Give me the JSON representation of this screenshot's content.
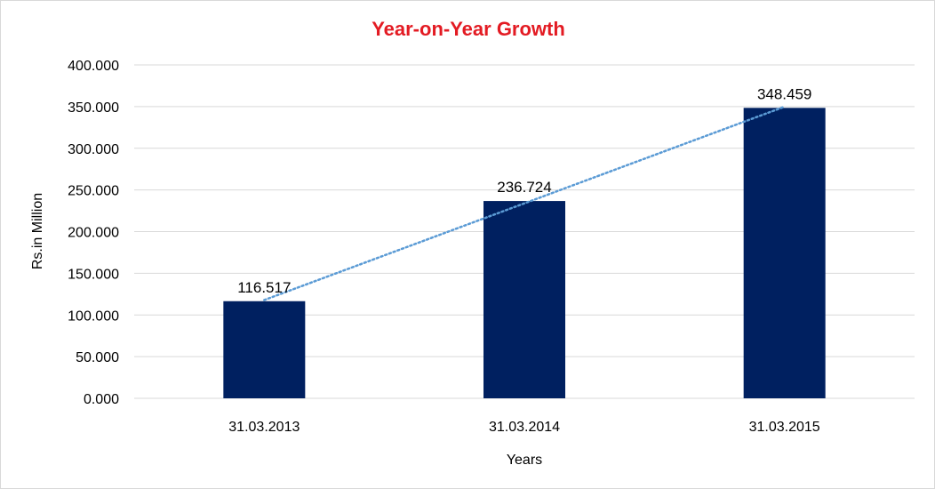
{
  "chart_data": {
    "type": "bar",
    "title": "Year-on-Year Growth",
    "xlabel": "Years",
    "ylabel": "Rs.in Million",
    "categories": [
      "31.03.2013",
      "31.03.2014",
      "31.03.2015"
    ],
    "values": [
      116.517,
      236.724,
      348.459
    ],
    "value_labels": [
      "116.517",
      "236.724",
      "348.459"
    ],
    "ylim": [
      0,
      400
    ],
    "yticks": [
      0,
      50,
      100,
      150,
      200,
      250,
      300,
      350,
      400
    ],
    "ytick_labels": [
      "0.000",
      "50.000",
      "100.000",
      "150.000",
      "200.000",
      "250.000",
      "300.000",
      "350.000",
      "400.000"
    ],
    "grid": true,
    "legend": "none",
    "trendline": {
      "type": "linear",
      "style": "dotted"
    },
    "colors": {
      "bar": "#002060",
      "title": "#e31b23",
      "trendline": "#5b9bd5",
      "grid": "#d9d9d9"
    }
  }
}
